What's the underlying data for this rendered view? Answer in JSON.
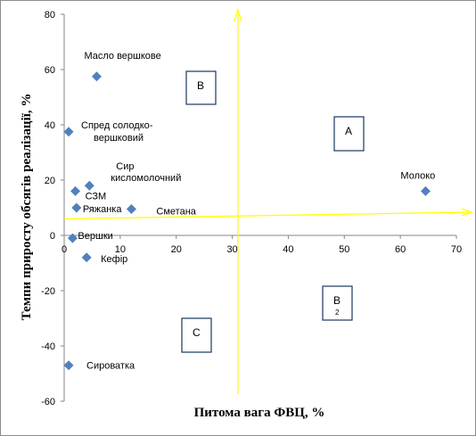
{
  "chart_data": {
    "type": "scatter",
    "xlabel": "Питома вага ФВЦ, %",
    "ylabel": "Темпи приросту обсягів реалізації, %",
    "xlim": [
      0,
      70
    ],
    "ylim": [
      -60,
      80
    ],
    "x_ticks": [
      "0",
      "10",
      "20",
      "30",
      "40",
      "50",
      "60",
      "70"
    ],
    "y_ticks": [
      "80",
      "60",
      "40",
      "20",
      "0",
      "-20",
      "-40",
      "-60"
    ],
    "points": [
      {
        "label": "Масло вершкове",
        "x": 5.8,
        "y": 57.5
      },
      {
        "label": "Спред солодко-вершковий",
        "x": 0.8,
        "y": 37.5
      },
      {
        "label": "Сир кисломолочний",
        "x": 4.5,
        "y": 18
      },
      {
        "label": "СЗМ",
        "x": 2.0,
        "y": 16
      },
      {
        "label": "Ряжанка",
        "x": 2.2,
        "y": 10
      },
      {
        "label": "Сметана",
        "x": 12.0,
        "y": 9.5
      },
      {
        "label": "Молоко",
        "x": 64.5,
        "y": 16
      },
      {
        "label": "Вершки",
        "x": 1.5,
        "y": -1
      },
      {
        "label": "Кефір",
        "x": 4.0,
        "y": -8
      },
      {
        "label": "Сироватка",
        "x": 0.8,
        "y": -47
      }
    ],
    "quadrant_boxes": [
      "B",
      "A",
      "B",
      "C"
    ],
    "quadrant_box_sub": "2",
    "divider_x": 31,
    "divider_y": 6,
    "colors": {
      "points": "#4f81bd",
      "dividers": "#ffff00",
      "axis": "#868686"
    },
    "grid": false
  }
}
